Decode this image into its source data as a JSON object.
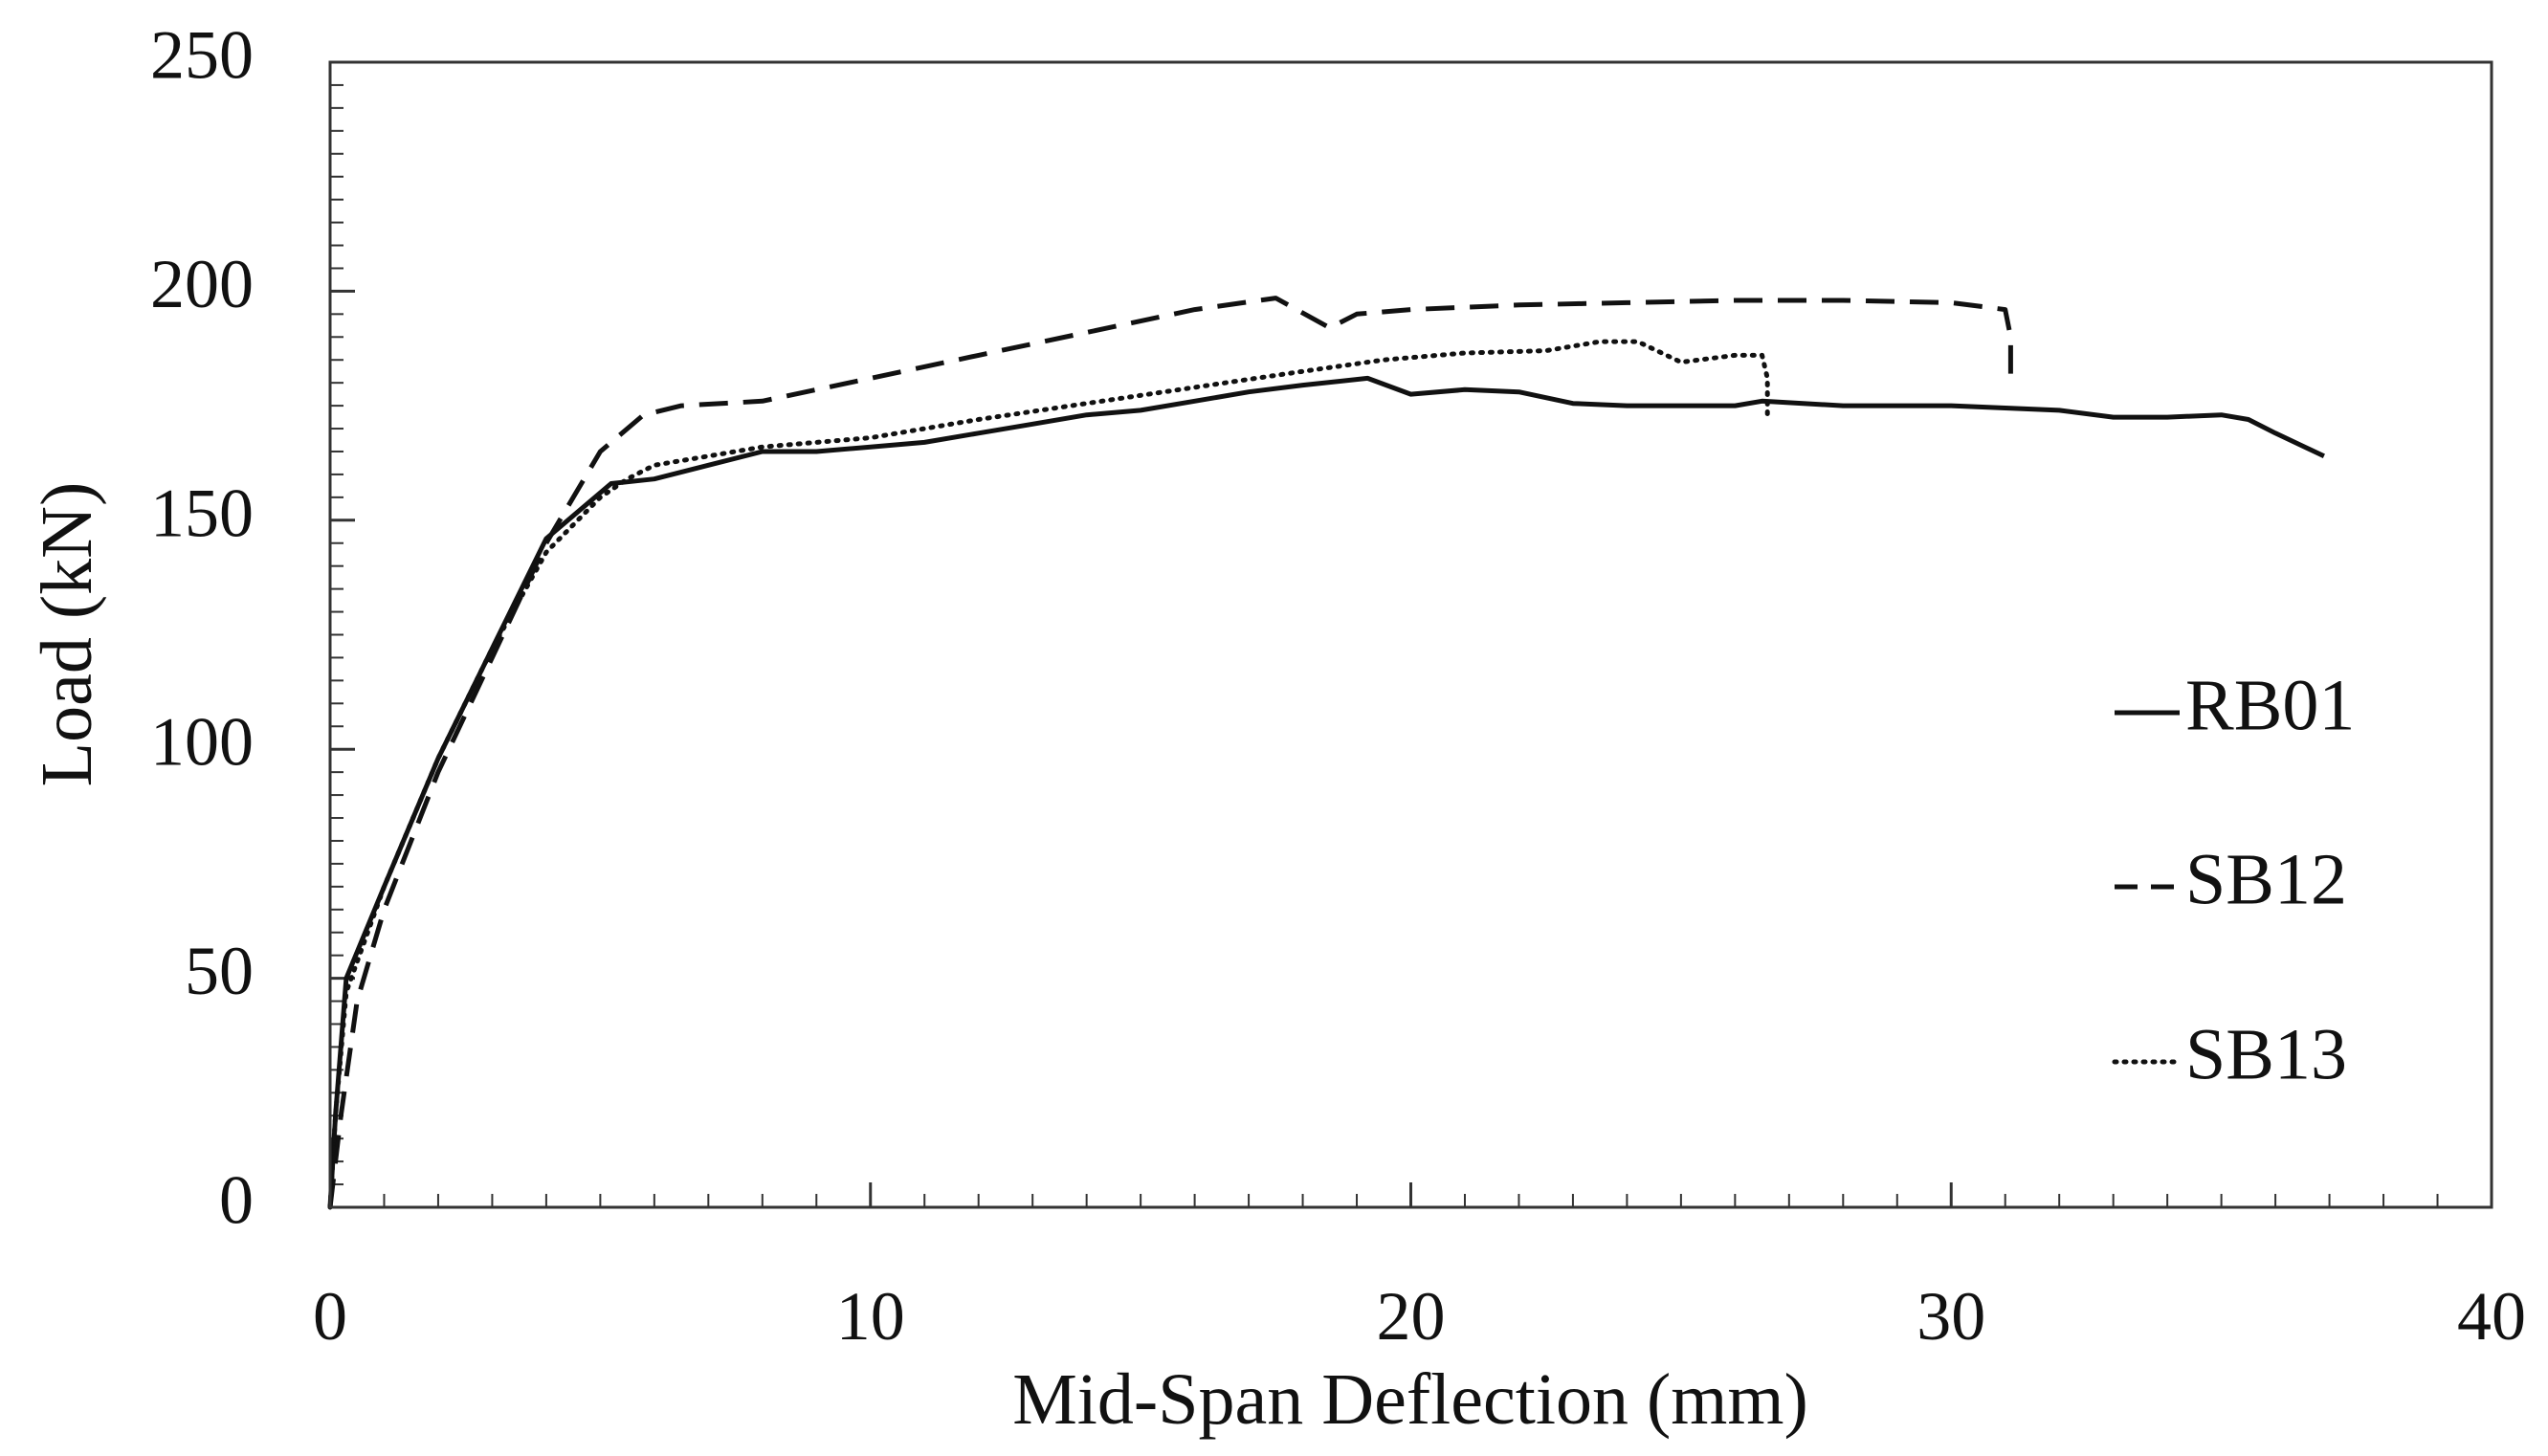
{
  "chart_data": {
    "type": "line",
    "title": "",
    "xlabel": "Mid-Span Deflection (mm)",
    "ylabel": "Load (kN)",
    "xlim": [
      0,
      40
    ],
    "ylim": [
      0,
      250
    ],
    "x_ticks": [
      0,
      10,
      20,
      30,
      40
    ],
    "y_ticks": [
      0,
      50,
      100,
      150,
      200,
      250
    ],
    "x_tick_labels": [
      "0",
      "10",
      "20",
      "30",
      "40"
    ],
    "y_tick_labels": [
      "0",
      "50",
      "100",
      "150",
      "200",
      "250"
    ],
    "grid": false,
    "legend_position": "right",
    "colors": {
      "line": "#111111",
      "axis": "#333333",
      "background": "#ffffff"
    },
    "series": [
      {
        "name": "RB01",
        "style": "solid",
        "points": [
          [
            0,
            0
          ],
          [
            0.1,
            20
          ],
          [
            0.3,
            50
          ],
          [
            1,
            70
          ],
          [
            2,
            98
          ],
          [
            3,
            122
          ],
          [
            4,
            146
          ],
          [
            5.2,
            158
          ],
          [
            6,
            159
          ],
          [
            7,
            162
          ],
          [
            8,
            165
          ],
          [
            9,
            165
          ],
          [
            10,
            166
          ],
          [
            11,
            167
          ],
          [
            12,
            169
          ],
          [
            13,
            171
          ],
          [
            14,
            173
          ],
          [
            15,
            174
          ],
          [
            16,
            176
          ],
          [
            17,
            178
          ],
          [
            18,
            179.5
          ],
          [
            19.2,
            181
          ],
          [
            20,
            177.5
          ],
          [
            21,
            178.5
          ],
          [
            22,
            178
          ],
          [
            23,
            175.5
          ],
          [
            24,
            175
          ],
          [
            25,
            175
          ],
          [
            26,
            175
          ],
          [
            26.5,
            176
          ],
          [
            28,
            175
          ],
          [
            29,
            175
          ],
          [
            30,
            175
          ],
          [
            31,
            174.5
          ],
          [
            32,
            174
          ],
          [
            33,
            172.5
          ],
          [
            34,
            172.5
          ],
          [
            35,
            173
          ],
          [
            35.5,
            172
          ],
          [
            36,
            169
          ],
          [
            36.9,
            164
          ]
        ]
      },
      {
        "name": "SB12",
        "style": "dashed",
        "points": [
          [
            0,
            0
          ],
          [
            0.2,
            20
          ],
          [
            0.5,
            45
          ],
          [
            1,
            65
          ],
          [
            2,
            95
          ],
          [
            3,
            120
          ],
          [
            4,
            145
          ],
          [
            5,
            165
          ],
          [
            5.8,
            173
          ],
          [
            6.5,
            175
          ],
          [
            8,
            176
          ],
          [
            10,
            181
          ],
          [
            12,
            186
          ],
          [
            14,
            191
          ],
          [
            16,
            196
          ],
          [
            17.5,
            198.5
          ],
          [
            18.5,
            192
          ],
          [
            19,
            195
          ],
          [
            20,
            196
          ],
          [
            22,
            197
          ],
          [
            24,
            197.5
          ],
          [
            26,
            198
          ],
          [
            28,
            198
          ],
          [
            30,
            197.5
          ],
          [
            31,
            196
          ],
          [
            31.1,
            190
          ],
          [
            31.1,
            182
          ]
        ]
      },
      {
        "name": "SB13",
        "style": "dotted",
        "points": [
          [
            0,
            0
          ],
          [
            0.1,
            20
          ],
          [
            0.3,
            47
          ],
          [
            1,
            70
          ],
          [
            2,
            98
          ],
          [
            3,
            122
          ],
          [
            4,
            143
          ],
          [
            5,
            155
          ],
          [
            5.5,
            159
          ],
          [
            6,
            162
          ],
          [
            7,
            164
          ],
          [
            8,
            166
          ],
          [
            10,
            168
          ],
          [
            12,
            172
          ],
          [
            14,
            175.5
          ],
          [
            16,
            179
          ],
          [
            18,
            182.5
          ],
          [
            19.5,
            185
          ],
          [
            21,
            186.5
          ],
          [
            22.5,
            187
          ],
          [
            23.5,
            189
          ],
          [
            24.2,
            189
          ],
          [
            25,
            184.5
          ],
          [
            26,
            186
          ],
          [
            26.5,
            186
          ],
          [
            26.6,
            181
          ],
          [
            26.6,
            173
          ]
        ]
      }
    ]
  }
}
